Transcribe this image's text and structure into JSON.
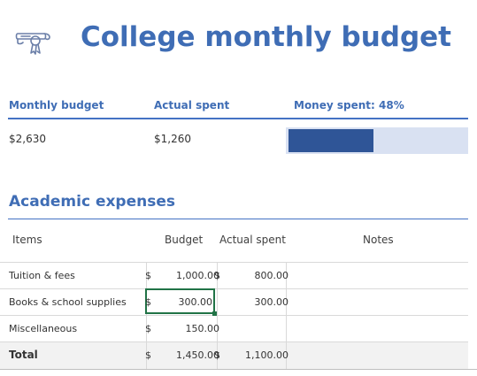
{
  "title": "College monthly budget",
  "summary": {
    "headers": {
      "monthly_budget": "Monthly budget",
      "actual_spent": "Actual spent",
      "money_spent": "Money spent: 48%"
    },
    "values": {
      "monthly_budget": "$2,630",
      "actual_spent": "$1,260"
    },
    "money_spent_fraction": 0.48
  },
  "section": {
    "title": "Academic expenses"
  },
  "table": {
    "columns": {
      "items": "Items",
      "budget": "Budget",
      "actual": "Actual spent",
      "notes": "Notes"
    },
    "rows": [
      {
        "item": "Tuition & fees",
        "budget_currency": "$",
        "budget": "1,000.00",
        "actual_currency": "$",
        "actual": "800.00"
      },
      {
        "item": "Books & school supplies",
        "budget_currency": "$",
        "budget": "300.00",
        "actual_currency": "",
        "actual": "300.00"
      },
      {
        "item": "Miscellaneous",
        "budget_currency": "$",
        "budget": "150.00",
        "actual_currency": "",
        "actual": ""
      }
    ],
    "total": {
      "label": "Total",
      "budget_currency": "$",
      "budget": "1,450.00",
      "actual_currency": "$",
      "actual": "1,100.00"
    }
  },
  "colors": {
    "accent": "#3f6db5",
    "bar_fill": "#2f5597",
    "bar_track": "#d9e1f2",
    "selection": "#217346"
  },
  "icons": {
    "logo": "diploma-icon"
  }
}
